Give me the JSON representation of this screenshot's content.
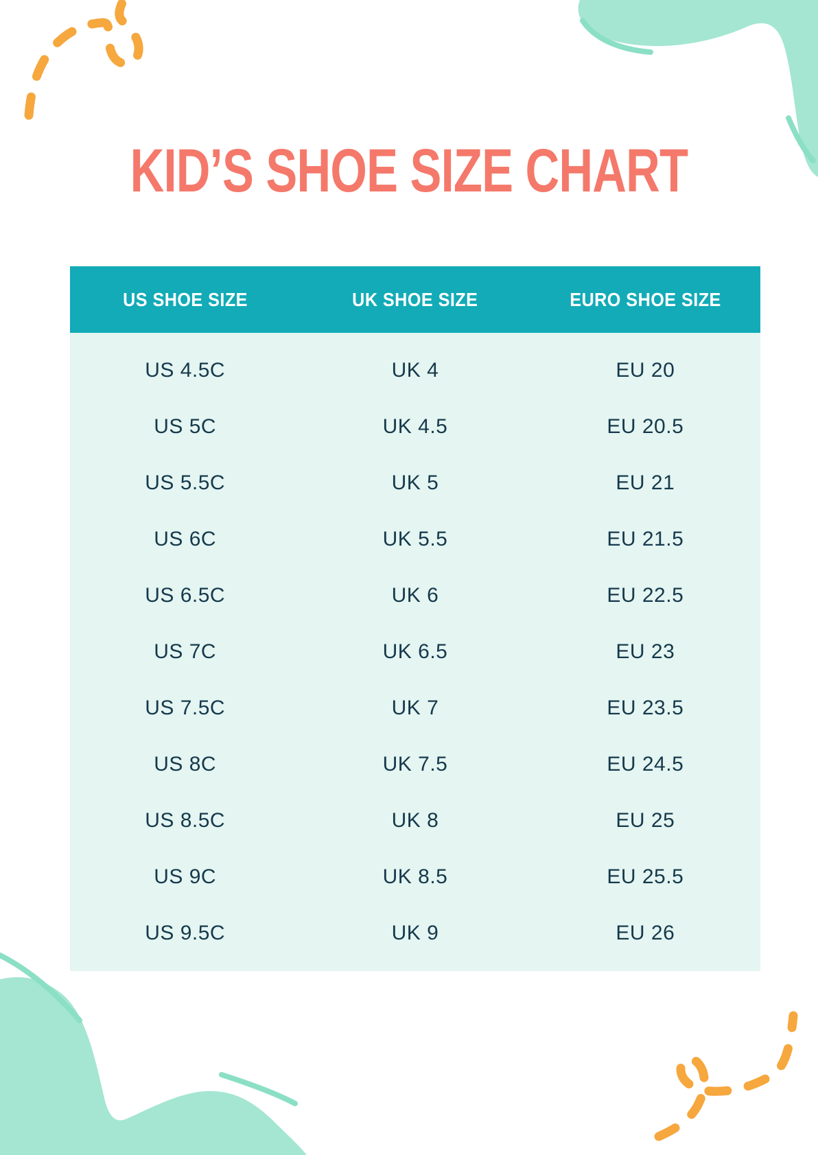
{
  "header": {
    "title": "KID’S SHOE SIZE CHART"
  },
  "table": {
    "columns": [
      "US SHOE SIZE",
      "UK SHOE SIZE",
      "EURO SHOE SIZE"
    ],
    "rows": [
      [
        "US 4.5C",
        "UK 4",
        "EU 20"
      ],
      [
        "US 5C",
        "UK 4.5",
        "EU 20.5"
      ],
      [
        "US 5.5C",
        "UK 5",
        "EU 21"
      ],
      [
        "US 6C",
        "UK 5.5",
        "EU 21.5"
      ],
      [
        "US 6.5C",
        "UK 6",
        "EU 22.5"
      ],
      [
        "US 7C",
        "UK 6.5",
        "EU 23"
      ],
      [
        "US 7.5C",
        "UK 7",
        "EU 23.5"
      ],
      [
        "US 8C",
        "UK 7.5",
        "EU 24.5"
      ],
      [
        "US 8.5C",
        "UK 8",
        "EU 25"
      ],
      [
        "US 9C",
        "UK 8.5",
        "EU 25.5"
      ],
      [
        "US 9.5C",
        "UK 9",
        "EU 26"
      ]
    ]
  },
  "chart_data": {
    "type": "table",
    "title": "KID’S SHOE SIZE CHART",
    "columns": [
      "US SHOE SIZE",
      "UK SHOE SIZE",
      "EURO SHOE SIZE"
    ],
    "rows": [
      [
        "US 4.5C",
        "UK 4",
        "EU 20"
      ],
      [
        "US 5C",
        "UK 4.5",
        "EU 20.5"
      ],
      [
        "US 5.5C",
        "UK 5",
        "EU 21"
      ],
      [
        "US 6C",
        "UK 5.5",
        "EU 21.5"
      ],
      [
        "US 6.5C",
        "UK 6",
        "EU 22.5"
      ],
      [
        "US 7C",
        "UK 6.5",
        "EU 23"
      ],
      [
        "US 7.5C",
        "UK 7",
        "EU 23.5"
      ],
      [
        "US 8C",
        "UK 7.5",
        "EU 24.5"
      ],
      [
        "US 8.5C",
        "UK 8",
        "EU 25"
      ],
      [
        "US 9C",
        "UK 8.5",
        "EU 25.5"
      ],
      [
        "US 9.5C",
        "UK 9",
        "EU 26"
      ]
    ],
    "layout": {
      "header_position": "top",
      "grid": false,
      "columns_count": 3,
      "rows_count": 11
    }
  },
  "colors": {
    "title": "#F4796B",
    "header_bg": "#12ABB7",
    "header_text": "#FFFFFF",
    "body_bg": "#E4F5F2",
    "body_text": "#16394B",
    "blob": "#A4E6D1",
    "blob_stroke": "#8BDFC5",
    "doodle": "#F6A73E"
  }
}
